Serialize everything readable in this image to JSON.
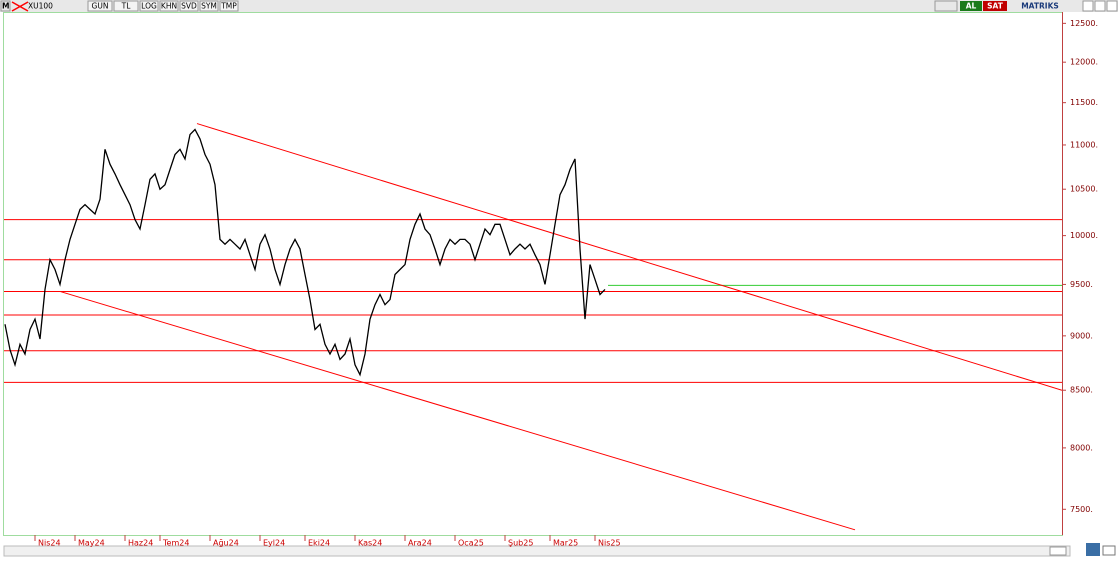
{
  "toolbar": {
    "logo": "M",
    "symbol": "XU100",
    "buttons": [
      "GUN",
      "TL",
      "LOG",
      "KHN",
      "SVD",
      "SYM",
      "TMP"
    ],
    "buy": "AL",
    "sell": "SAT",
    "brand": "MATRIKS"
  },
  "chart_data": {
    "type": "line",
    "log_scale": true,
    "grid": false,
    "series": [
      {
        "color": "#000000",
        "x": [
          0,
          1,
          2,
          3,
          4,
          5,
          6,
          7,
          8,
          9,
          10,
          11,
          12,
          13,
          14,
          15,
          16,
          17,
          18,
          19,
          20,
          21,
          22,
          23,
          24,
          25,
          26,
          27,
          28,
          29,
          30,
          31,
          32,
          33,
          34,
          35,
          36,
          37,
          38,
          39,
          40,
          41,
          42,
          43,
          44,
          45,
          46,
          47,
          48,
          49,
          50,
          51,
          52,
          53,
          54,
          55,
          56,
          57,
          58,
          59,
          60,
          61,
          62,
          63,
          64,
          65,
          66,
          67,
          68,
          69,
          70,
          71,
          72,
          73,
          74,
          75,
          76,
          77,
          78,
          79,
          80,
          81,
          82,
          83,
          84,
          85,
          86,
          87,
          88,
          89,
          90,
          91,
          92,
          93,
          94,
          95,
          96,
          97,
          98,
          99,
          100,
          101,
          102,
          103,
          104,
          105,
          106,
          107,
          108,
          109,
          110,
          111,
          112,
          113,
          114,
          115,
          116,
          117,
          118,
          119,
          120
        ],
        "values": [
          9110,
          8870,
          8730,
          8920,
          8830,
          9060,
          9160,
          8970,
          9450,
          9750,
          9650,
          9500,
          9750,
          9960,
          10120,
          10280,
          10330,
          10280,
          10230,
          10390,
          10950,
          10780,
          10670,
          10550,
          10440,
          10330,
          10170,
          10070,
          10330,
          10610,
          10670,
          10500,
          10550,
          10720,
          10890,
          10950,
          10840,
          11120,
          11180,
          11070,
          10890,
          10780,
          10550,
          9960,
          9910,
          9960,
          9910,
          9860,
          9960,
          9800,
          9650,
          9910,
          10010,
          9860,
          9650,
          9500,
          9700,
          9860,
          9960,
          9860,
          9600,
          9350,
          9060,
          9110,
          8920,
          8830,
          8920,
          8780,
          8830,
          8970,
          8730,
          8640,
          8830,
          9160,
          9300,
          9400,
          9300,
          9350,
          9600,
          9650,
          9700,
          9960,
          10120,
          10230,
          10070,
          10010,
          9860,
          9700,
          9860,
          9960,
          9910,
          9960,
          9960,
          9910,
          9750,
          9910,
          10070,
          10010,
          10120,
          10120,
          9960,
          9800,
          9860,
          9910,
          9860,
          9910,
          9800,
          9700,
          9500,
          9800,
          10120,
          10440,
          10550,
          10720,
          10840,
          9860,
          9160,
          9700,
          9550,
          9400,
          9450
        ]
      }
    ],
    "levels": [
      {
        "value": 10170,
        "color": "#ff0000"
      },
      {
        "value": 9750,
        "color": "#ff0000"
      },
      {
        "value": 9430,
        "color": "#ff0000"
      },
      {
        "value": 9200,
        "color": "#ff0000"
      },
      {
        "value": 8860,
        "color": "#ff0000"
      },
      {
        "value": 8570,
        "color": "#ff0000"
      },
      {
        "value": 9490,
        "color": "#33cc33",
        "from": 120.6
      }
    ],
    "trend_lines": [
      {
        "x": [
          38.4,
          211.4
        ],
        "y": [
          11250,
          8500
        ],
        "color": "#ff0000"
      },
      {
        "x": [
          11,
          170
        ],
        "y": [
          9430,
          7340
        ],
        "color": "#ff0000"
      }
    ],
    "xlim": [
      0,
      212
    ],
    "xticks": [
      {
        "value": 6,
        "label": "Nis24"
      },
      {
        "value": 14,
        "label": "May24"
      },
      {
        "value": 24,
        "label": "Haz24"
      },
      {
        "value": 31,
        "label": "Tem24"
      },
      {
        "value": 41,
        "label": "Ağu24"
      },
      {
        "value": 51,
        "label": "Eyl24"
      },
      {
        "value": 60,
        "label": "Eki24"
      },
      {
        "value": 70,
        "label": "Kas24"
      },
      {
        "value": 80,
        "label": "Ara24"
      },
      {
        "value": 90,
        "label": "Oca25"
      },
      {
        "value": 100,
        "label": "Şub25"
      },
      {
        "value": 109,
        "label": "Mar25"
      },
      {
        "value": 118,
        "label": "Nis25"
      }
    ],
    "ylim": [
      7300,
      12650
    ],
    "yticks": [
      {
        "value": 12500,
        "label": "12500."
      },
      {
        "value": 12000,
        "label": "12000."
      },
      {
        "value": 11500,
        "label": "11500."
      },
      {
        "value": 11000,
        "label": "11000."
      },
      {
        "value": 10500,
        "label": "10500."
      },
      {
        "value": 10000,
        "label": "10000."
      },
      {
        "value": 9500,
        "label": "9500."
      },
      {
        "value": 9000,
        "label": "9000."
      },
      {
        "value": 8500,
        "label": "8500."
      },
      {
        "value": 8000,
        "label": "8000."
      },
      {
        "value": 7500,
        "label": "7500."
      }
    ]
  }
}
